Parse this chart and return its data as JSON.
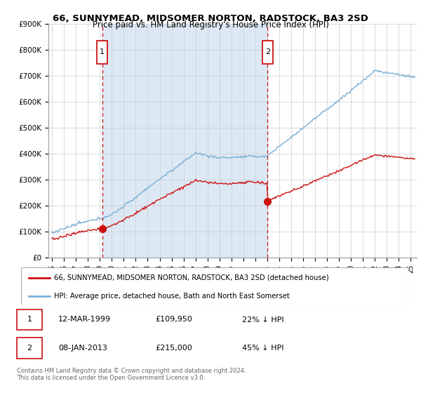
{
  "title": "66, SUNNYMEAD, MIDSOMER NORTON, RADSTOCK, BA3 2SD",
  "subtitle": "Price paid vs. HM Land Registry's House Price Index (HPI)",
  "ylim": [
    0,
    900000
  ],
  "yticks": [
    0,
    100000,
    200000,
    300000,
    400000,
    500000,
    600000,
    700000,
    800000,
    900000
  ],
  "ytick_labels": [
    "£0",
    "£100K",
    "£200K",
    "£300K",
    "£400K",
    "£500K",
    "£600K",
    "£700K",
    "£800K",
    "£900K"
  ],
  "xlim_start": 1994.7,
  "xlim_end": 2025.5,
  "hpi_color": "#7aafd4",
  "hpi_fill_color": "#dce9f5",
  "price_color": "#cc1111",
  "sale1_year": 1999.19,
  "sale1_price": 109950,
  "sale2_year": 2013.02,
  "sale2_price": 215000,
  "legend_label1": "66, SUNNYMEAD, MIDSOMER NORTON, RADSTOCK, BA3 2SD (detached house)",
  "legend_label2": "HPI: Average price, detached house, Bath and North East Somerset",
  "transaction1_date": "12-MAR-1999",
  "transaction1_price": "£109,950",
  "transaction1_hpi": "22% ↓ HPI",
  "transaction2_date": "08-JAN-2013",
  "transaction2_price": "£215,000",
  "transaction2_hpi": "45% ↓ HPI",
  "footnote": "Contains HM Land Registry data © Crown copyright and database right 2024.\nThis data is licensed under the Open Government Licence v3.0.",
  "background_color": "#ffffff",
  "grid_color": "#cccccc"
}
